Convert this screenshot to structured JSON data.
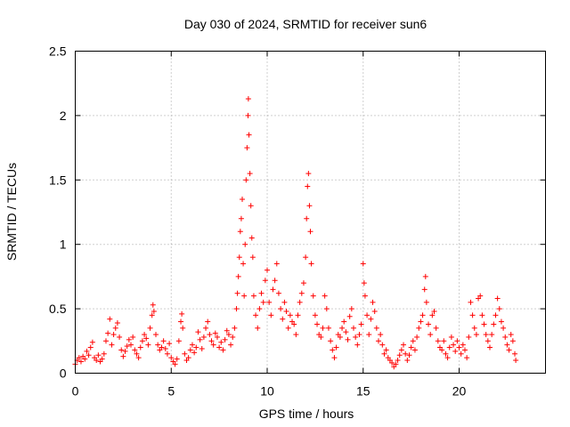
{
  "chart_data": {
    "type": "scatter",
    "title": "Day 030 of 2024, SRMTID for receiver sun6",
    "xlabel": "GPS time / hours",
    "ylabel": "SRMTID / TECUs",
    "xlim": [
      0,
      24.5
    ],
    "ylim": [
      0,
      2.5
    ],
    "x_ticks": [
      0,
      5,
      10,
      15,
      20
    ],
    "x_tick_labels": [
      "0",
      "5",
      "10",
      "15",
      "20"
    ],
    "y_ticks": [
      0,
      0.5,
      1,
      1.5,
      2,
      2.5
    ],
    "y_tick_labels": [
      "0",
      "0.5",
      "1",
      "1.5",
      "2",
      "2.5"
    ],
    "grid": true,
    "marker": "+",
    "color": "#ff0000",
    "series": [
      {
        "name": "SRMTID",
        "points": [
          [
            0.0,
            0.07
          ],
          [
            0.1,
            0.1
          ],
          [
            0.2,
            0.12
          ],
          [
            0.3,
            0.09
          ],
          [
            0.4,
            0.13
          ],
          [
            0.5,
            0.11
          ],
          [
            0.6,
            0.17
          ],
          [
            0.7,
            0.14
          ],
          [
            0.8,
            0.2
          ],
          [
            0.9,
            0.24
          ],
          [
            1.0,
            0.12
          ],
          [
            1.1,
            0.1
          ],
          [
            1.2,
            0.14
          ],
          [
            1.3,
            0.09
          ],
          [
            1.4,
            0.11
          ],
          [
            1.5,
            0.15
          ],
          [
            1.6,
            0.25
          ],
          [
            1.7,
            0.31
          ],
          [
            1.8,
            0.42
          ],
          [
            1.9,
            0.22
          ],
          [
            2.0,
            0.3
          ],
          [
            2.1,
            0.35
          ],
          [
            2.2,
            0.39
          ],
          [
            2.3,
            0.28
          ],
          [
            2.4,
            0.18
          ],
          [
            2.5,
            0.13
          ],
          [
            2.6,
            0.17
          ],
          [
            2.7,
            0.21
          ],
          [
            2.8,
            0.26
          ],
          [
            2.9,
            0.22
          ],
          [
            3.0,
            0.28
          ],
          [
            3.1,
            0.18
          ],
          [
            3.2,
            0.15
          ],
          [
            3.3,
            0.12
          ],
          [
            3.4,
            0.2
          ],
          [
            3.5,
            0.25
          ],
          [
            3.6,
            0.3
          ],
          [
            3.7,
            0.27
          ],
          [
            3.8,
            0.22
          ],
          [
            3.9,
            0.35
          ],
          [
            4.0,
            0.45
          ],
          [
            4.05,
            0.53
          ],
          [
            4.1,
            0.48
          ],
          [
            4.2,
            0.3
          ],
          [
            4.3,
            0.22
          ],
          [
            4.4,
            0.18
          ],
          [
            4.5,
            0.2
          ],
          [
            4.6,
            0.25
          ],
          [
            4.7,
            0.19
          ],
          [
            4.8,
            0.15
          ],
          [
            4.9,
            0.23
          ],
          [
            5.0,
            0.12
          ],
          [
            5.1,
            0.09
          ],
          [
            5.2,
            0.07
          ],
          [
            5.3,
            0.11
          ],
          [
            5.4,
            0.25
          ],
          [
            5.5,
            0.4
          ],
          [
            5.55,
            0.46
          ],
          [
            5.6,
            0.35
          ],
          [
            5.7,
            0.15
          ],
          [
            5.8,
            0.1
          ],
          [
            5.9,
            0.12
          ],
          [
            6.0,
            0.18
          ],
          [
            6.1,
            0.22
          ],
          [
            6.2,
            0.16
          ],
          [
            6.3,
            0.2
          ],
          [
            6.4,
            0.32
          ],
          [
            6.5,
            0.26
          ],
          [
            6.6,
            0.19
          ],
          [
            6.7,
            0.28
          ],
          [
            6.8,
            0.35
          ],
          [
            6.9,
            0.4
          ],
          [
            7.0,
            0.3
          ],
          [
            7.1,
            0.25
          ],
          [
            7.2,
            0.22
          ],
          [
            7.3,
            0.31
          ],
          [
            7.4,
            0.28
          ],
          [
            7.5,
            0.2
          ],
          [
            7.6,
            0.24
          ],
          [
            7.7,
            0.18
          ],
          [
            7.8,
            0.26
          ],
          [
            7.9,
            0.33
          ],
          [
            8.0,
            0.3
          ],
          [
            8.1,
            0.22
          ],
          [
            8.2,
            0.28
          ],
          [
            8.3,
            0.35
          ],
          [
            8.4,
            0.5
          ],
          [
            8.45,
            0.62
          ],
          [
            8.5,
            0.75
          ],
          [
            8.55,
            0.9
          ],
          [
            8.6,
            1.1
          ],
          [
            8.65,
            1.2
          ],
          [
            8.7,
            1.35
          ],
          [
            8.75,
            0.85
          ],
          [
            8.8,
            0.6
          ],
          [
            8.85,
            1.0
          ],
          [
            8.9,
            1.5
          ],
          [
            8.95,
            1.75
          ],
          [
            9.0,
            2.0
          ],
          [
            9.02,
            2.13
          ],
          [
            9.05,
            1.85
          ],
          [
            9.1,
            1.55
          ],
          [
            9.15,
            1.3
          ],
          [
            9.2,
            1.05
          ],
          [
            9.25,
            0.9
          ],
          [
            9.3,
            0.6
          ],
          [
            9.4,
            0.45
          ],
          [
            9.5,
            0.35
          ],
          [
            9.6,
            0.5
          ],
          [
            9.7,
            0.62
          ],
          [
            9.8,
            0.55
          ],
          [
            9.9,
            0.72
          ],
          [
            10.0,
            0.8
          ],
          [
            10.1,
            0.55
          ],
          [
            10.2,
            0.45
          ],
          [
            10.3,
            0.65
          ],
          [
            10.4,
            0.72
          ],
          [
            10.5,
            0.85
          ],
          [
            10.6,
            0.62
          ],
          [
            10.7,
            0.5
          ],
          [
            10.8,
            0.42
          ],
          [
            10.9,
            0.55
          ],
          [
            11.0,
            0.48
          ],
          [
            11.1,
            0.35
          ],
          [
            11.2,
            0.45
          ],
          [
            11.3,
            0.4
          ],
          [
            11.4,
            0.38
          ],
          [
            11.5,
            0.3
          ],
          [
            11.6,
            0.45
          ],
          [
            11.7,
            0.55
          ],
          [
            11.8,
            0.62
          ],
          [
            11.9,
            0.7
          ],
          [
            12.0,
            0.9
          ],
          [
            12.05,
            1.2
          ],
          [
            12.1,
            1.45
          ],
          [
            12.15,
            1.55
          ],
          [
            12.2,
            1.3
          ],
          [
            12.25,
            1.1
          ],
          [
            12.3,
            0.85
          ],
          [
            12.4,
            0.6
          ],
          [
            12.5,
            0.45
          ],
          [
            12.6,
            0.38
          ],
          [
            12.7,
            0.3
          ],
          [
            12.8,
            0.28
          ],
          [
            12.9,
            0.35
          ],
          [
            13.0,
            0.6
          ],
          [
            13.1,
            0.5
          ],
          [
            13.2,
            0.35
          ],
          [
            13.3,
            0.25
          ],
          [
            13.4,
            0.18
          ],
          [
            13.5,
            0.12
          ],
          [
            13.6,
            0.2
          ],
          [
            13.7,
            0.3
          ],
          [
            13.8,
            0.28
          ],
          [
            13.9,
            0.35
          ],
          [
            14.0,
            0.4
          ],
          [
            14.1,
            0.32
          ],
          [
            14.2,
            0.26
          ],
          [
            14.3,
            0.44
          ],
          [
            14.4,
            0.5
          ],
          [
            14.5,
            0.35
          ],
          [
            14.6,
            0.28
          ],
          [
            14.7,
            0.22
          ],
          [
            14.8,
            0.3
          ],
          [
            14.9,
            0.38
          ],
          [
            15.0,
            0.85
          ],
          [
            15.05,
            0.7
          ],
          [
            15.1,
            0.6
          ],
          [
            15.2,
            0.45
          ],
          [
            15.3,
            0.3
          ],
          [
            15.4,
            0.42
          ],
          [
            15.5,
            0.55
          ],
          [
            15.6,
            0.48
          ],
          [
            15.7,
            0.35
          ],
          [
            15.8,
            0.25
          ],
          [
            15.9,
            0.3
          ],
          [
            16.0,
            0.22
          ],
          [
            16.1,
            0.15
          ],
          [
            16.2,
            0.18
          ],
          [
            16.3,
            0.12
          ],
          [
            16.4,
            0.1
          ],
          [
            16.5,
            0.08
          ],
          [
            16.6,
            0.05
          ],
          [
            16.7,
            0.07
          ],
          [
            16.8,
            0.1
          ],
          [
            16.9,
            0.14
          ],
          [
            17.0,
            0.18
          ],
          [
            17.1,
            0.22
          ],
          [
            17.2,
            0.15
          ],
          [
            17.3,
            0.1
          ],
          [
            17.4,
            0.14
          ],
          [
            17.5,
            0.2
          ],
          [
            17.6,
            0.25
          ],
          [
            17.7,
            0.18
          ],
          [
            17.8,
            0.28
          ],
          [
            17.9,
            0.35
          ],
          [
            18.0,
            0.4
          ],
          [
            18.1,
            0.45
          ],
          [
            18.2,
            0.65
          ],
          [
            18.25,
            0.75
          ],
          [
            18.3,
            0.55
          ],
          [
            18.4,
            0.38
          ],
          [
            18.5,
            0.3
          ],
          [
            18.6,
            0.45
          ],
          [
            18.7,
            0.48
          ],
          [
            18.8,
            0.35
          ],
          [
            18.9,
            0.25
          ],
          [
            19.0,
            0.2
          ],
          [
            19.1,
            0.18
          ],
          [
            19.2,
            0.25
          ],
          [
            19.3,
            0.15
          ],
          [
            19.4,
            0.12
          ],
          [
            19.5,
            0.2
          ],
          [
            19.6,
            0.28
          ],
          [
            19.7,
            0.22
          ],
          [
            19.8,
            0.17
          ],
          [
            19.9,
            0.25
          ],
          [
            20.0,
            0.2
          ],
          [
            20.1,
            0.15
          ],
          [
            20.2,
            0.22
          ],
          [
            20.3,
            0.18
          ],
          [
            20.4,
            0.12
          ],
          [
            20.5,
            0.28
          ],
          [
            20.6,
            0.55
          ],
          [
            20.7,
            0.45
          ],
          [
            20.8,
            0.35
          ],
          [
            20.9,
            0.3
          ],
          [
            21.0,
            0.58
          ],
          [
            21.1,
            0.6
          ],
          [
            21.2,
            0.45
          ],
          [
            21.3,
            0.38
          ],
          [
            21.4,
            0.3
          ],
          [
            21.5,
            0.25
          ],
          [
            21.6,
            0.2
          ],
          [
            21.7,
            0.3
          ],
          [
            21.8,
            0.38
          ],
          [
            21.9,
            0.45
          ],
          [
            22.0,
            0.58
          ],
          [
            22.1,
            0.5
          ],
          [
            22.2,
            0.4
          ],
          [
            22.3,
            0.35
          ],
          [
            22.4,
            0.28
          ],
          [
            22.5,
            0.22
          ],
          [
            22.6,
            0.18
          ],
          [
            22.7,
            0.3
          ],
          [
            22.8,
            0.25
          ],
          [
            22.9,
            0.15
          ],
          [
            22.95,
            0.1
          ]
        ]
      }
    ]
  }
}
